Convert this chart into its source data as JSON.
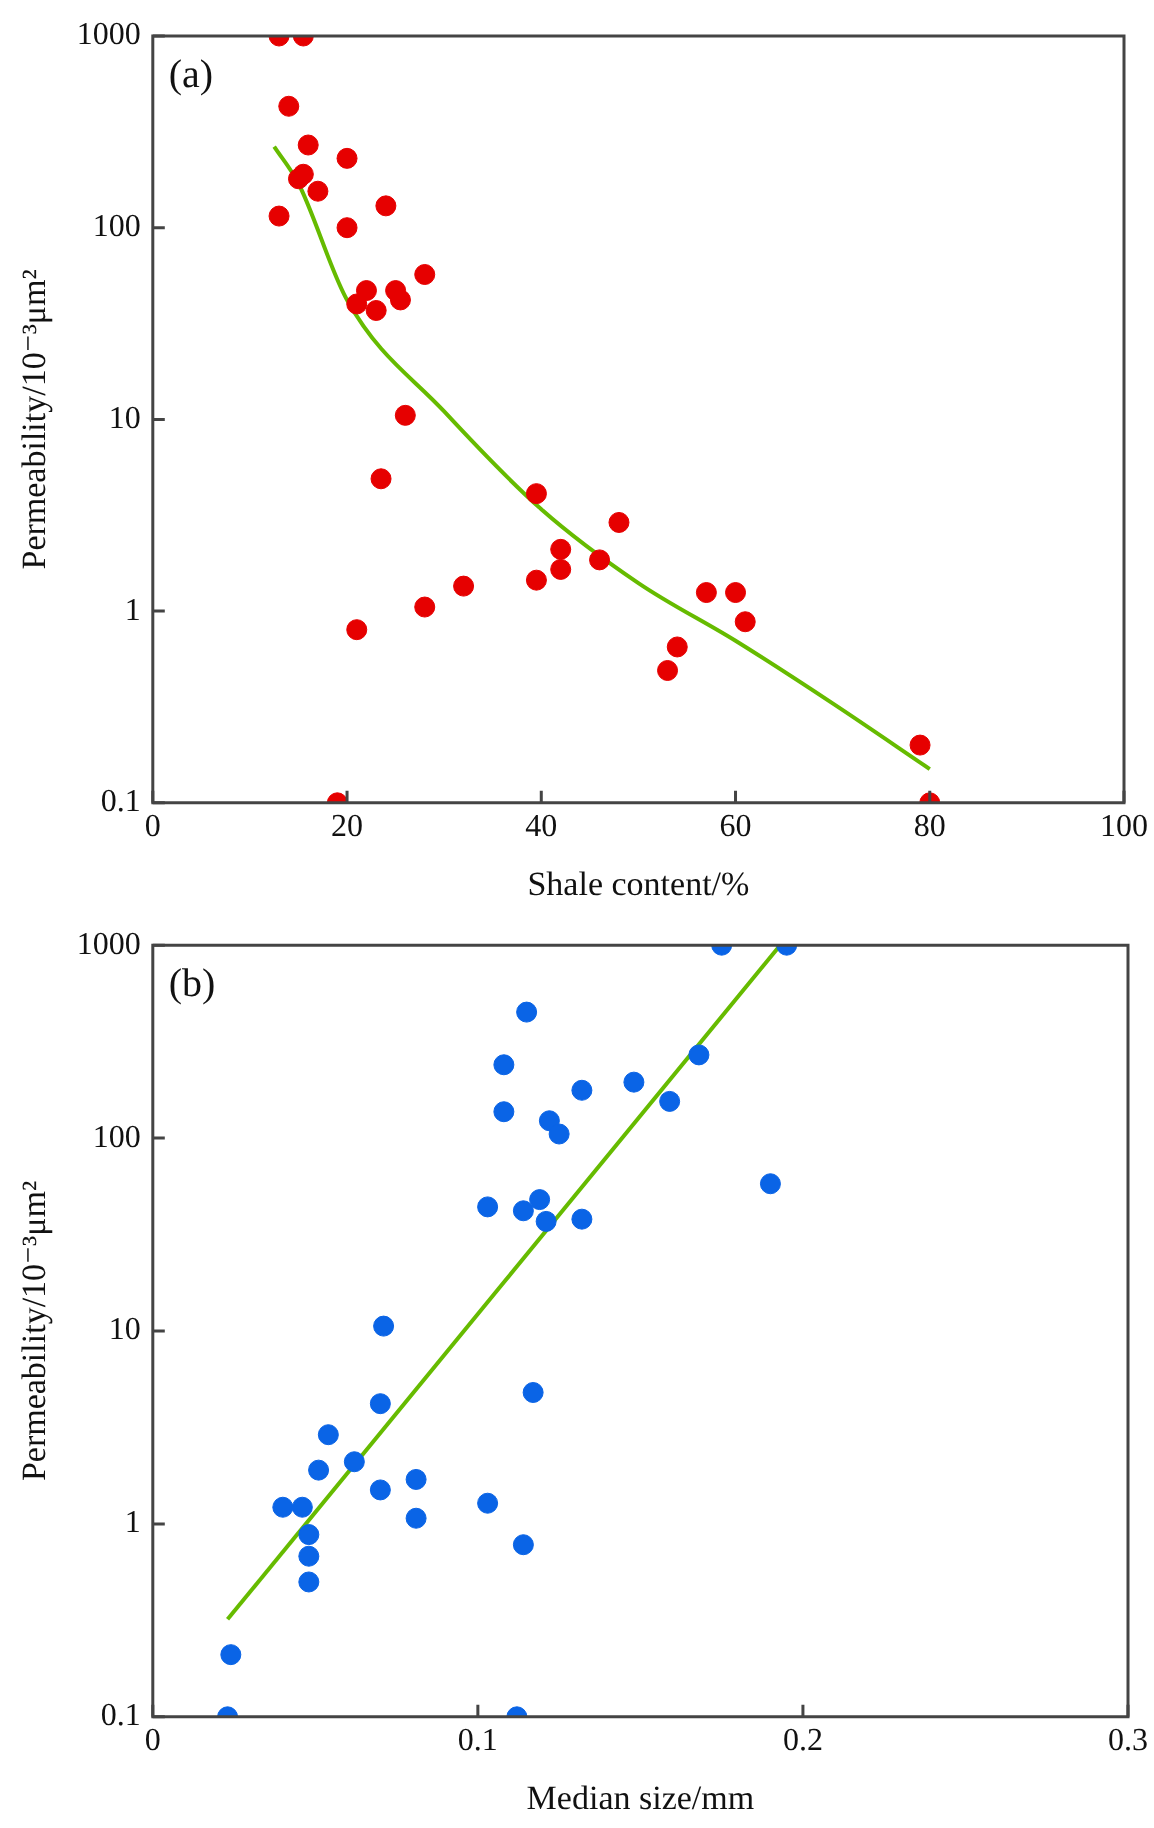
{
  "chart_data": [
    {
      "type": "scatter",
      "xlabel": "Shale content/%",
      "ylabel": "Permeability/10⁻³μm²",
      "annotations": [
        "(a)"
      ],
      "xlim": [
        0,
        100
      ],
      "xticks": [
        0,
        20,
        40,
        60,
        80,
        100
      ],
      "ylim": [
        0.1,
        1000
      ],
      "yticks": [
        0.1,
        1,
        10,
        100,
        1000
      ],
      "log": "y",
      "grid": false,
      "legend": false,
      "marker": "circle",
      "series": [
        {
          "color": "#e60000",
          "x": [
            13,
            15.5,
            14,
            16,
            20,
            15,
            15.5,
            17,
            24,
            13,
            20,
            22,
            25,
            25.5,
            21,
            23,
            28,
            26,
            23.5,
            39.5,
            48,
            42,
            46,
            39.5,
            42,
            32,
            28,
            21,
            57,
            60,
            61,
            54,
            53,
            79,
            19,
            80
          ],
          "values": [
            1000,
            1000,
            430,
            270,
            230,
            180,
            190,
            155,
            130,
            115,
            100,
            47,
            47,
            42,
            40,
            37,
            57,
            10.5,
            4.9,
            4.1,
            2.9,
            2.1,
            1.85,
            1.45,
            1.65,
            1.35,
            1.05,
            0.8,
            1.25,
            1.25,
            0.88,
            0.65,
            0.49,
            0.2,
            0.1,
            0.1
          ]
        },
        {
          "type": "line",
          "color": "#66bb00",
          "marker": "none",
          "x": [
            12.5,
            15,
            20,
            30,
            40,
            50,
            60,
            70,
            80
          ],
          "values": [
            265,
            170,
            42,
            11,
            3.4,
            1.4,
            0.7,
            0.33,
            0.15
          ]
        }
      ]
    },
    {
      "type": "scatter",
      "xlabel": "Median size/mm",
      "ylabel": "Permeability/10⁻³μm²",
      "annotations": [
        "(b)"
      ],
      "xlim": [
        0,
        0.3
      ],
      "xticks": [
        0,
        0.1,
        0.2,
        0.3
      ],
      "ylim": [
        0.1,
        1000
      ],
      "yticks": [
        0.1,
        1,
        10,
        100,
        1000
      ],
      "log": "y",
      "grid": false,
      "legend": false,
      "marker": "circle",
      "series": [
        {
          "color": "#0a64e6",
          "x": [
            0.024,
            0.023,
            0.112,
            0.175,
            0.195,
            0.115,
            0.108,
            0.108,
            0.168,
            0.148,
            0.132,
            0.159,
            0.122,
            0.125,
            0.19,
            0.103,
            0.114,
            0.119,
            0.121,
            0.132,
            0.071,
            0.117,
            0.07,
            0.054,
            0.062,
            0.051,
            0.07,
            0.081,
            0.081,
            0.04,
            0.046,
            0.103,
            0.048,
            0.048,
            0.048,
            0.114
          ],
          "values": [
            0.21,
            0.1,
            0.1,
            1000,
            1000,
            450,
            240,
            137,
            270,
            195,
            177,
            155,
            123,
            105,
            58,
            44,
            42,
            48,
            37,
            38,
            10.6,
            4.8,
            4.2,
            2.9,
            2.1,
            1.9,
            1.5,
            1.7,
            1.07,
            1.22,
            1.22,
            1.28,
            0.88,
            0.68,
            0.5,
            0.78
          ]
        },
        {
          "type": "line",
          "color": "#66bb00",
          "marker": "none",
          "x": [
            0.023,
            0.193
          ],
          "values": [
            0.32,
            1000
          ]
        }
      ]
    }
  ]
}
